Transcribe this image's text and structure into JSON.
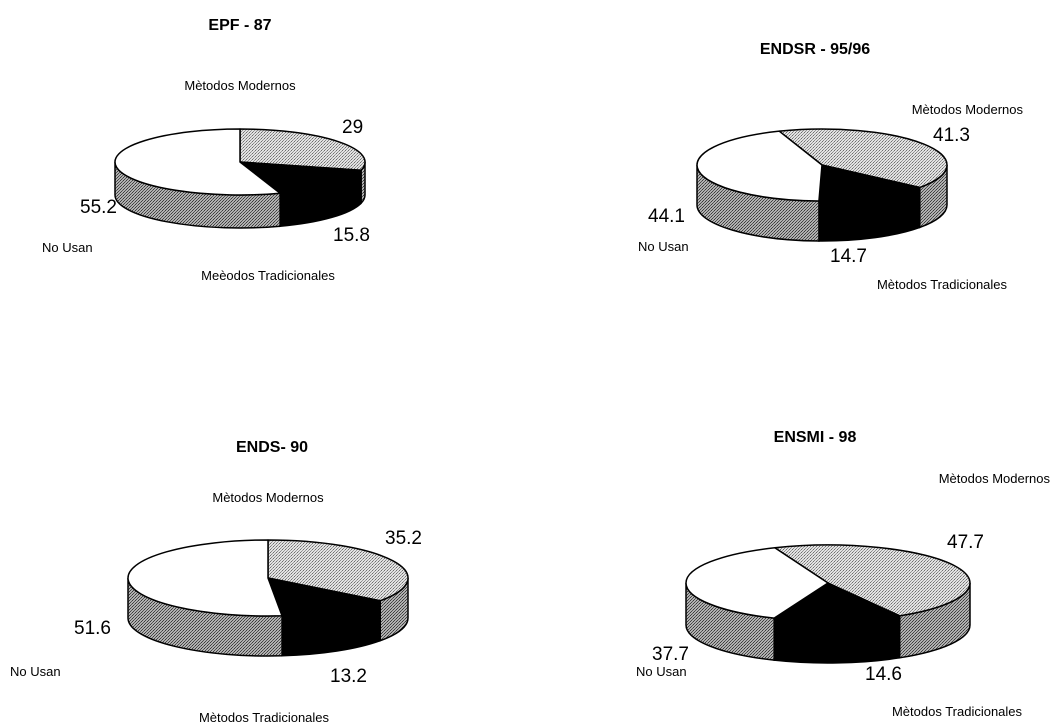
{
  "chart_data": [
    {
      "type": "pie",
      "title": "EPF - 87",
      "slices": [
        {
          "label": "Mètodos Modernos",
          "value": 29,
          "value_label": "29",
          "pattern": "light"
        },
        {
          "label": "Meèodos Tradicionales",
          "value": 15.8,
          "value_label": "15.8",
          "pattern": "black"
        },
        {
          "label": "No Usan",
          "value": 55.2,
          "value_label": "55.2",
          "pattern": "white"
        }
      ]
    },
    {
      "type": "pie",
      "title": "ENDSR - 95/96",
      "slices": [
        {
          "label": "Mètodos Modernos",
          "value": 41.3,
          "value_label": "41.3",
          "pattern": "light"
        },
        {
          "label": "Mètodos Tradicionales",
          "value": 14.7,
          "value_label": "14.7",
          "pattern": "black"
        },
        {
          "label": "No Usan",
          "value": 44.1,
          "value_label": "44.1",
          "pattern": "white"
        }
      ]
    },
    {
      "type": "pie",
      "title": "ENDS- 90",
      "slices": [
        {
          "label": "Mètodos Modernos",
          "value": 35.2,
          "value_label": "35.2",
          "pattern": "light"
        },
        {
          "label": "Mètodos Tradicionales",
          "value": 13.2,
          "value_label": "13.2",
          "pattern": "black"
        },
        {
          "label": "No Usan",
          "value": 51.6,
          "value_label": "51.6",
          "pattern": "white"
        }
      ]
    },
    {
      "type": "pie",
      "title": "ENSMI - 98",
      "slices": [
        {
          "label": "Mètodos Modernos",
          "value": 47.7,
          "value_label": "47.7",
          "pattern": "light"
        },
        {
          "label": "Mètodos Tradicionales",
          "value": 14.6,
          "value_label": "14.6",
          "pattern": "black"
        },
        {
          "label": "No Usan",
          "value": 37.7,
          "value_label": "37.7",
          "pattern": "white"
        }
      ]
    }
  ],
  "colors": {
    "light": "#cfcfcf",
    "dark_side": "#888888",
    "black": "#000000",
    "white": "#ffffff"
  }
}
